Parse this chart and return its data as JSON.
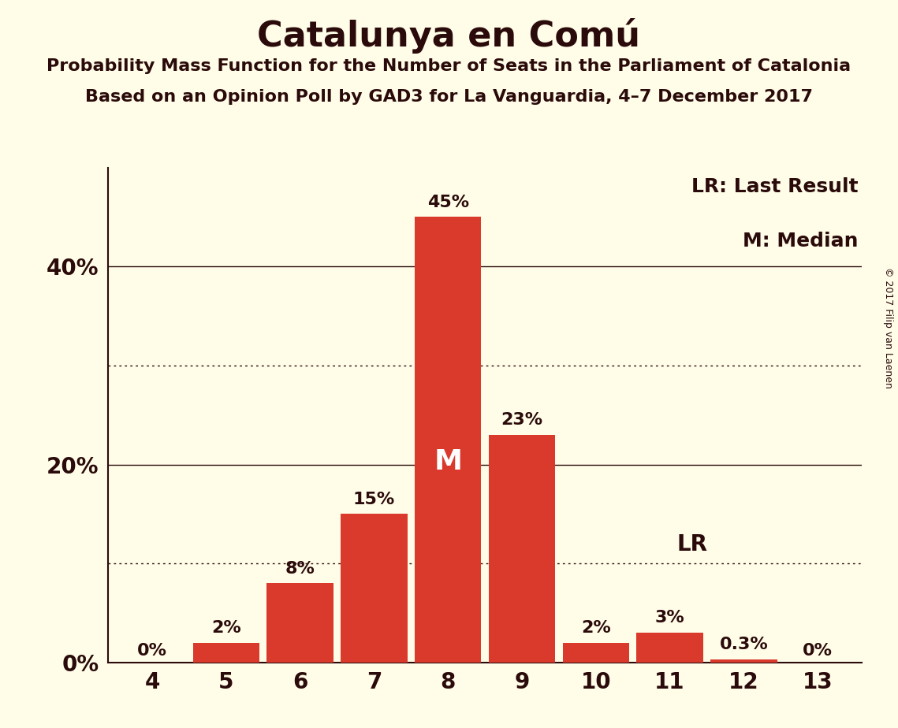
{
  "title": "Catalunya en Comú",
  "subtitle1": "Probability Mass Function for the Number of Seats in the Parliament of Catalonia",
  "subtitle2": "Based on an Opinion Poll by GAD3 for La Vanguardia, 4–7 December 2017",
  "copyright": "© 2017 Filip van Laenen",
  "categories": [
    4,
    5,
    6,
    7,
    8,
    9,
    10,
    11,
    12,
    13
  ],
  "values": [
    0.0,
    2.0,
    8.0,
    15.0,
    45.0,
    23.0,
    2.0,
    3.0,
    0.3,
    0.0
  ],
  "bar_color": "#d93a2b",
  "bar_labels": [
    "0%",
    "2%",
    "8%",
    "15%",
    "45%",
    "23%",
    "2%",
    "3%",
    "0.3%",
    "0%"
  ],
  "background_color": "#fffde8",
  "text_color": "#2a0a0a",
  "axis_line_color": "#2a0a0a",
  "grid_solid_color": "#2a0a0a",
  "grid_dotted_color": "#2a0a0a",
  "yticks_solid": [
    0,
    20,
    40
  ],
  "yticks_dotted": [
    10,
    30
  ],
  "ylim": [
    0,
    50
  ],
  "median_seat": 8,
  "lr_seat": 11,
  "legend_lr": "LR: Last Result",
  "legend_m": "M: Median",
  "title_fontsize": 32,
  "subtitle_fontsize": 16,
  "label_fontsize": 16,
  "tick_fontsize": 20,
  "legend_fontsize": 18,
  "median_label_fontsize": 26,
  "lr_label_fontsize": 20,
  "copyright_fontsize": 9
}
